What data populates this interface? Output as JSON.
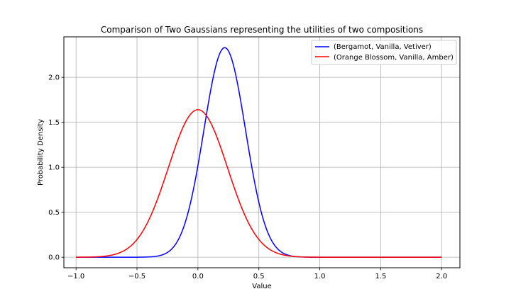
{
  "chart_data": {
    "type": "line",
    "title": "Comparison of Two Gaussians representing the utilities of two compositions",
    "xlabel": "Value",
    "ylabel": "Probability Density",
    "xlim": [
      -1.1,
      2.15
    ],
    "ylim": [
      -0.117,
      2.45
    ],
    "xticks": [
      -1.0,
      -0.5,
      0.0,
      0.5,
      1.0,
      1.5,
      2.0
    ],
    "xtick_labels": [
      "−1.0",
      "−0.5",
      "0.0",
      "0.5",
      "1.0",
      "1.5",
      "2.0"
    ],
    "yticks": [
      0.0,
      0.5,
      1.0,
      1.5,
      2.0
    ],
    "ytick_labels": [
      "0.0",
      "0.5",
      "1.0",
      "1.5",
      "2.0"
    ],
    "grid": true,
    "legend_position": "top-right",
    "x_range": [
      -1.0,
      2.0
    ],
    "series": [
      {
        "name": "(Bergamot, Vanilla, Vetiver)",
        "color": "#0000ff",
        "distribution": "gaussian",
        "mean": 0.22,
        "std": 0.171,
        "peak": 2.33
      },
      {
        "name": "(Orange Blossom, Vanilla, Amber)",
        "color": "#ff0000",
        "distribution": "gaussian",
        "mean": 0.0,
        "std": 0.243,
        "peak": 1.64
      }
    ]
  }
}
